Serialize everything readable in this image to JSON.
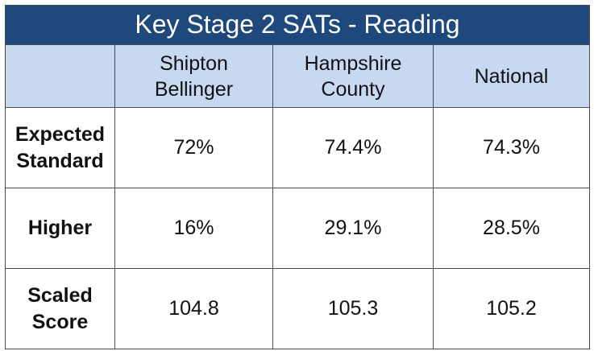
{
  "table": {
    "title": "Key Stage 2 SATs - Reading",
    "columns": [
      {
        "line1": "Shipton",
        "line2": "Bellinger"
      },
      {
        "line1": "Hampshire",
        "line2": "County"
      },
      {
        "line1": "National",
        "line2": ""
      }
    ],
    "rows": [
      {
        "label_line1": "Expected",
        "label_line2": "Standard",
        "values": [
          "72%",
          "74.4%",
          "74.3%"
        ]
      },
      {
        "label_line1": "Higher",
        "label_line2": "",
        "values": [
          "16%",
          "29.1%",
          "28.5%"
        ]
      },
      {
        "label_line1": "Scaled",
        "label_line2": "Score",
        "values": [
          "104.8",
          "105.3",
          "105.2"
        ]
      }
    ]
  },
  "colors": {
    "title_bg": "#1f497d",
    "header_bg": "#c6d9f1",
    "border": "#4a4a4a"
  }
}
